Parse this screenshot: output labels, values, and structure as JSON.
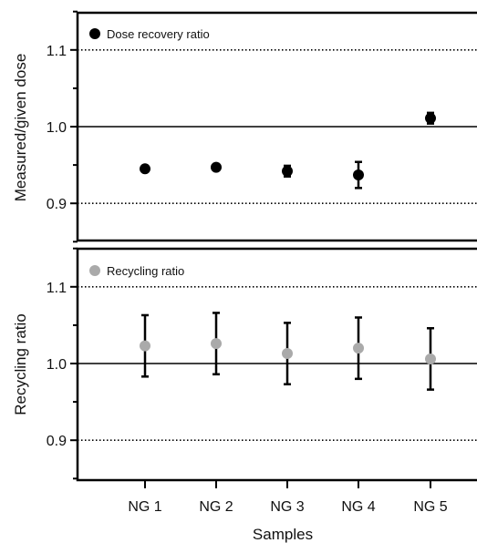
{
  "chart_data": [
    {
      "type": "scatter",
      "ylabel": "Measured/given dose",
      "xlabel": "",
      "categories": [
        "NG 1",
        "NG 2",
        "NG 3",
        "NG 4",
        "NG 5"
      ],
      "ylim": [
        0.85,
        1.15
      ],
      "yticks": [
        "0.9",
        "1.0",
        "1.1"
      ],
      "reference_lines": [
        {
          "y": 1.0,
          "style": "solid"
        },
        {
          "y": 0.9,
          "style": "dotted"
        },
        {
          "y": 1.1,
          "style": "dotted"
        }
      ],
      "legend": "top-left",
      "series": [
        {
          "name": "Dose recovery ratio",
          "color": "#000000",
          "values": [
            0.945,
            0.947,
            0.942,
            0.937,
            1.011
          ],
          "errors": [
            0.0,
            0.0,
            0.007,
            0.017,
            0.007
          ]
        }
      ]
    },
    {
      "type": "scatter",
      "ylabel": "Recycling ratio",
      "xlabel": "Samples",
      "categories": [
        "NG 1",
        "NG 2",
        "NG 3",
        "NG 4",
        "NG 5"
      ],
      "ylim": [
        0.85,
        1.15
      ],
      "yticks": [
        "0.9",
        "1.0",
        "1.1"
      ],
      "reference_lines": [
        {
          "y": 1.0,
          "style": "solid"
        },
        {
          "y": 0.9,
          "style": "dotted"
        },
        {
          "y": 1.1,
          "style": "dotted"
        }
      ],
      "legend": "top-left",
      "series": [
        {
          "name": "Recycling ratio",
          "color": "#aaaaaa",
          "values": [
            1.023,
            1.026,
            1.013,
            1.02,
            1.006
          ],
          "errors": [
            0.04,
            0.04,
            0.04,
            0.04,
            0.04
          ]
        }
      ]
    }
  ]
}
